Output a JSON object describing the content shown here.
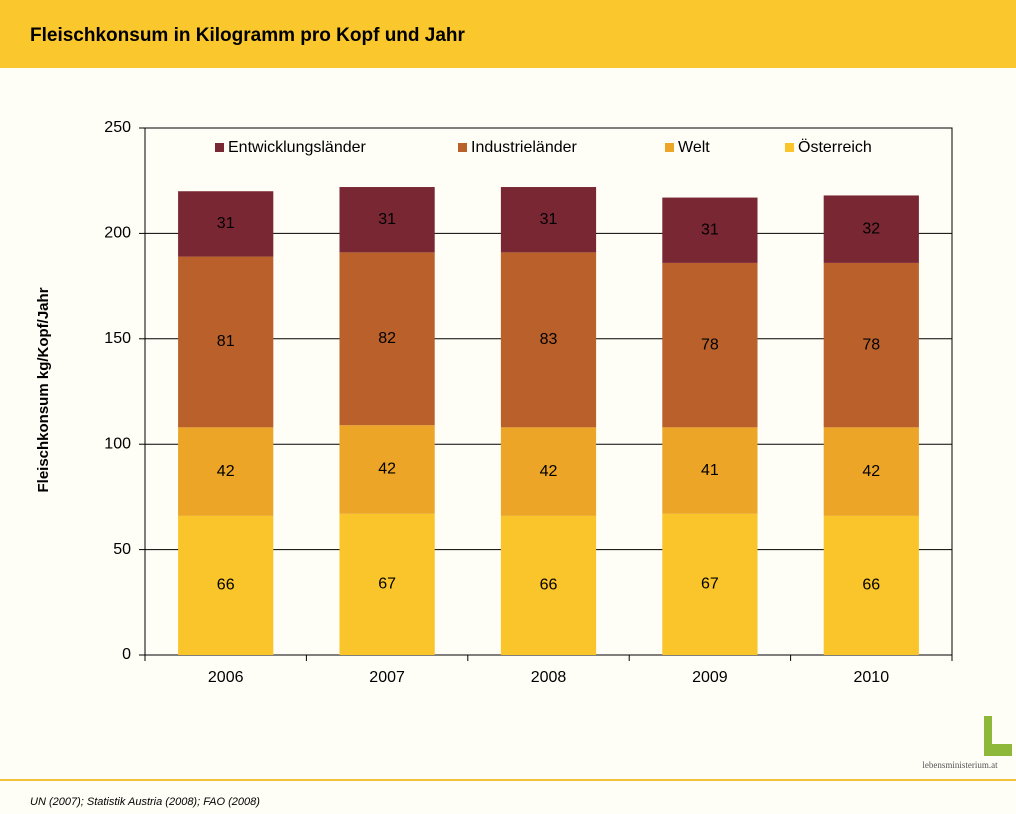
{
  "header": {
    "title": "Fleischkonsum in Kilogramm pro Kopf und Jahr"
  },
  "chart_data": {
    "type": "stacked_bar",
    "y_label": "Fleischkonsum kg/Kopf/Jahr",
    "categories": [
      "2006",
      "2007",
      "2008",
      "2009",
      "2010"
    ],
    "series": [
      {
        "name": "Österreich",
        "color": "#f9c52a",
        "values": [
          66,
          67,
          66,
          67,
          66
        ]
      },
      {
        "name": "Welt",
        "color": "#eca526",
        "values": [
          42,
          42,
          42,
          41,
          42
        ]
      },
      {
        "name": "Industrieländer",
        "color": "#b9602b",
        "values": [
          81,
          82,
          83,
          78,
          78
        ]
      },
      {
        "name": "Entwicklungsländer",
        "color": "#7a2734",
        "values": [
          31,
          31,
          31,
          31,
          32
        ]
      }
    ],
    "ylim": [
      0,
      250
    ],
    "yticks": [
      0,
      50,
      100,
      150,
      200,
      250
    ],
    "grid": true,
    "legend": "top"
  },
  "footer": {
    "source": "UN (2007); Statistik Austria (2008); FAO (2008)",
    "logo": "lebensministerium.at"
  }
}
